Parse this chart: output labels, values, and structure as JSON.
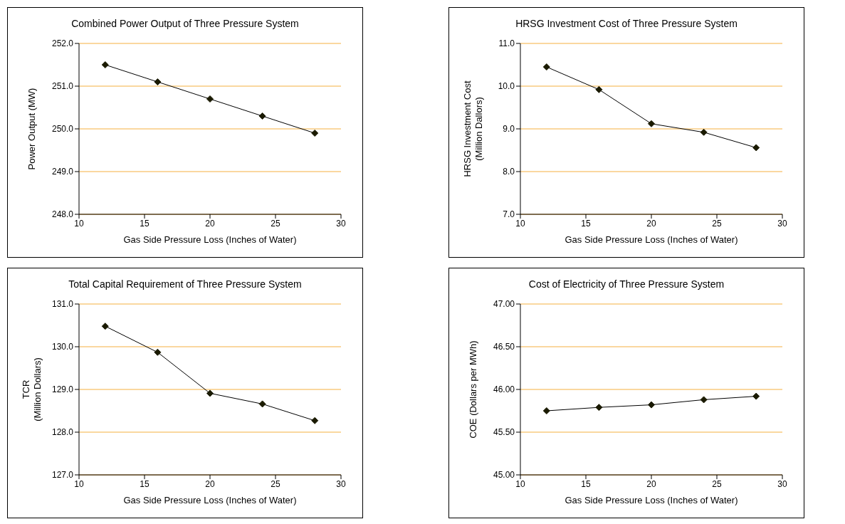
{
  "chart_data": [
    {
      "type": "line",
      "title": "Combined Power Output of Three Pressure System",
      "xlabel": "Gas Side Pressure Loss (Inches of Water)",
      "ylabel": "Power Output (MW)",
      "x": [
        12,
        16,
        20,
        24,
        28
      ],
      "series": [
        {
          "color": "#1a1a00",
          "values": [
            251.5,
            251.1,
            250.7,
            250.3,
            249.9
          ]
        }
      ],
      "xlim": [
        10,
        30
      ],
      "xticks": [
        10,
        15,
        20,
        25,
        30
      ],
      "ylim": [
        248,
        252
      ],
      "yticks": [
        {
          "value": 248,
          "label": "248.0"
        },
        {
          "value": 249,
          "label": "249.0"
        },
        {
          "value": 250,
          "label": "250.0"
        },
        {
          "value": 251,
          "label": "251.0"
        },
        {
          "value": 252,
          "label": "252.0"
        }
      ],
      "grid": "y",
      "marker": "diamond",
      "line_style": "solid",
      "legend": false
    },
    {
      "type": "line",
      "title": "HRSG Investment Cost of Three Pressure System",
      "xlabel": "Gas Side Pressure Loss (Inches of Water)",
      "ylabel": "HRSG Investment Cost\n(Million Dallors)",
      "x": [
        12,
        16,
        20,
        24,
        28
      ],
      "series": [
        {
          "color": "#1a1a00",
          "values": [
            10.45,
            9.92,
            9.12,
            8.92,
            8.56
          ]
        }
      ],
      "xlim": [
        10,
        30
      ],
      "xticks": [
        10,
        15,
        20,
        25,
        30
      ],
      "ylim": [
        7,
        11
      ],
      "yticks": [
        {
          "value": 7,
          "label": "7.0"
        },
        {
          "value": 8,
          "label": "8.0"
        },
        {
          "value": 9,
          "label": "9.0"
        },
        {
          "value": 10,
          "label": "10.0"
        },
        {
          "value": 11,
          "label": "11.0"
        }
      ],
      "grid": "y",
      "marker": "diamond",
      "line_style": "solid",
      "legend": false
    },
    {
      "type": "line",
      "title": "Total Capital Requirement of Three Pressure System",
      "xlabel": "Gas Side Pressure Loss (Inches of Water)",
      "ylabel": "TCR\n(Million Dollars)",
      "x": [
        12,
        16,
        20,
        24,
        28
      ],
      "series": [
        {
          "color": "#1a1a00",
          "values": [
            130.48,
            129.87,
            128.91,
            128.66,
            128.27
          ]
        }
      ],
      "xlim": [
        10,
        30
      ],
      "xticks": [
        10,
        15,
        20,
        25,
        30
      ],
      "ylim": [
        127,
        131
      ],
      "yticks": [
        {
          "value": 127,
          "label": "127.0"
        },
        {
          "value": 128,
          "label": "128.0"
        },
        {
          "value": 129,
          "label": "129.0"
        },
        {
          "value": 130,
          "label": "130.0"
        },
        {
          "value": 131,
          "label": "131.0"
        }
      ],
      "grid": "y",
      "marker": "diamond",
      "line_style": "solid",
      "legend": false
    },
    {
      "type": "line",
      "title": "Cost of Electricity of Three Pressure System",
      "xlabel": "Gas Side Pressure Loss (Inches of Water)",
      "ylabel": "COE (Dollars per MWh)",
      "x": [
        12,
        16,
        20,
        24,
        28
      ],
      "series": [
        {
          "color": "#1a1a00",
          "values": [
            45.75,
            45.79,
            45.82,
            45.88,
            45.92
          ]
        }
      ],
      "xlim": [
        10,
        30
      ],
      "xticks": [
        10,
        15,
        20,
        25,
        30
      ],
      "ylim": [
        45,
        47
      ],
      "yticks": [
        {
          "value": 45,
          "label": "45.00"
        },
        {
          "value": 45.5,
          "label": "45.50"
        },
        {
          "value": 46,
          "label": "46.00"
        },
        {
          "value": 46.5,
          "label": "46.50"
        },
        {
          "value": 47,
          "label": "47.00"
        }
      ],
      "grid": "y",
      "marker": "diamond",
      "line_style": "solid",
      "legend": false
    }
  ]
}
